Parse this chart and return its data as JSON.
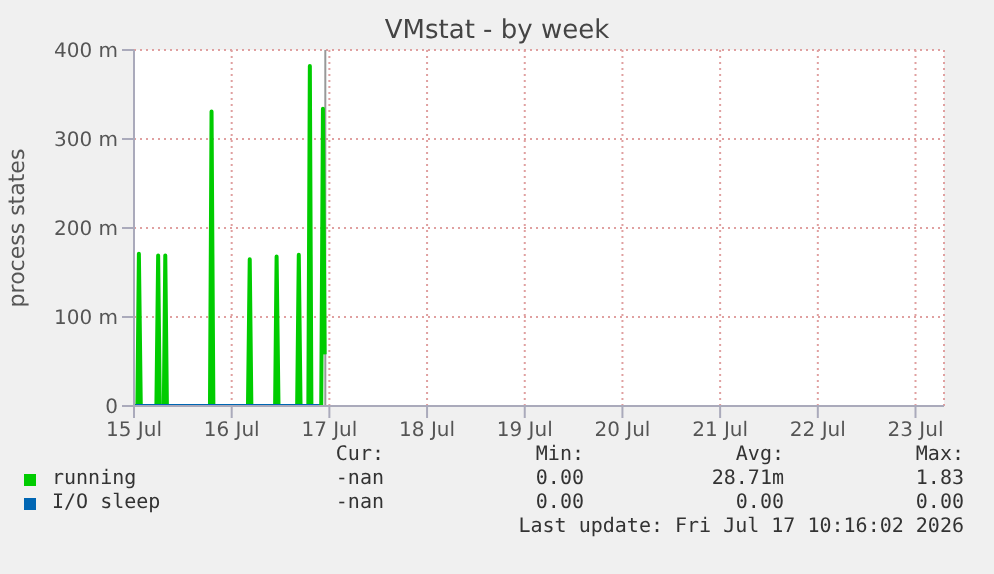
{
  "chart_data": {
    "type": "line",
    "title": "VMstat - by week",
    "ylabel": "process states",
    "xlim": [
      "2026-07-15T00:00",
      "2026-07-23T07:00"
    ],
    "xticks": [
      {
        "value": "2026-07-15",
        "label": "15 Jul"
      },
      {
        "value": "2026-07-16",
        "label": "16 Jul"
      },
      {
        "value": "2026-07-17",
        "label": "17 Jul"
      },
      {
        "value": "2026-07-18",
        "label": "18 Jul"
      },
      {
        "value": "2026-07-19",
        "label": "19 Jul"
      },
      {
        "value": "2026-07-20",
        "label": "20 Jul"
      },
      {
        "value": "2026-07-21",
        "label": "21 Jul"
      },
      {
        "value": "2026-07-22",
        "label": "22 Jul"
      },
      {
        "value": "2026-07-23",
        "label": "23 Jul"
      }
    ],
    "ylim": [
      0,
      400
    ],
    "yticks": [
      0,
      {
        "value": 100,
        "label": "100 m"
      },
      {
        "value": 200,
        "label": "200 m"
      },
      {
        "value": 300,
        "label": "300 m"
      },
      {
        "value": 400,
        "label": "400 m"
      }
    ],
    "grid": true,
    "legend": "bottom",
    "marker": "none",
    "line_style": "solid",
    "series": [
      {
        "name": "running",
        "color": "#00cc00",
        "x": [
          "2026-07-15T00:00",
          "2026-07-15T00:50",
          "2026-07-15T01:12",
          "2026-07-15T01:40",
          "2026-07-15T05:30",
          "2026-07-15T05:56",
          "2026-07-15T06:20",
          "2026-07-15T07:20",
          "2026-07-15T07:41",
          "2026-07-15T08:05",
          "2026-07-15T18:40",
          "2026-07-15T19:03",
          "2026-07-15T19:30",
          "2026-07-16T04:00",
          "2026-07-16T04:26",
          "2026-07-16T04:50",
          "2026-07-16T10:40",
          "2026-07-16T11:02",
          "2026-07-16T11:30",
          "2026-07-16T16:05",
          "2026-07-16T16:29",
          "2026-07-16T16:55",
          "2026-07-16T18:50",
          "2026-07-16T19:12",
          "2026-07-16T19:35",
          "2026-07-16T22:00",
          "2026-07-16T22:25",
          "2026-07-16T22:50"
        ],
        "values": [
          0,
          0,
          171,
          0,
          0,
          169,
          0,
          0,
          169,
          0,
          0,
          331,
          0,
          0,
          165,
          0,
          0,
          168,
          0,
          0,
          170,
          0,
          0,
          382,
          0,
          0,
          334,
          58
        ]
      },
      {
        "name": "I/O sleep",
        "color": "#0066b3",
        "x": [
          "2026-07-15T00:20",
          "2026-07-16T21:30"
        ],
        "values": [
          0,
          0
        ]
      }
    ],
    "ref_lines": [
      {
        "axis": "x",
        "value": "2026-07-16T23:00",
        "label": null,
        "color": "#999999"
      }
    ],
    "annotations": [
      "Cur:",
      "Min:",
      "Avg:",
      "Max:",
      "-nan",
      "0.00",
      "28.71m",
      "1.83",
      "-nan",
      "0.00",
      "0.00",
      "0.00",
      "Last update: Fri Jul 17 10:16:02 2026"
    ]
  }
}
